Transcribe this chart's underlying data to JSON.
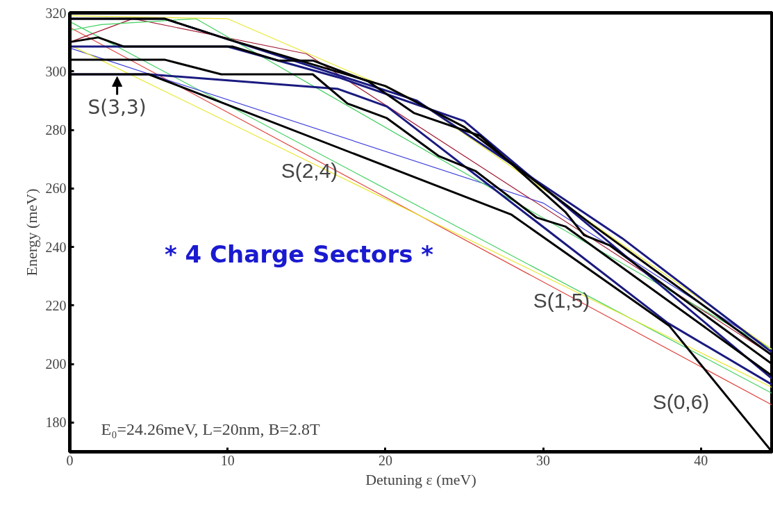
{
  "chart_data": {
    "type": "line",
    "xlabel": "Detuning ε (meV)",
    "ylabel": "Energy (meV)",
    "xlim": [
      0,
      44.5
    ],
    "ylim": [
      170,
      320
    ],
    "xticks": [
      0,
      10,
      20,
      30,
      40
    ],
    "yticks": [
      180,
      200,
      220,
      240,
      260,
      280,
      300,
      320
    ],
    "grid": false,
    "marker": "none",
    "line_style": "solid",
    "series": [
      {
        "color": "#e0403c",
        "x": [
          0,
          44.5
        ],
        "values": [
          315,
          186
        ]
      },
      {
        "color": "#40d060",
        "x": [
          0,
          44.5
        ],
        "values": [
          317,
          190
        ]
      },
      {
        "color": "#4040e0",
        "x": [
          0,
          30,
          44.5
        ],
        "values": [
          308,
          255,
          205
        ]
      },
      {
        "color": "#e8e830",
        "x": [
          0,
          44.5
        ],
        "values": [
          309,
          192
        ]
      },
      {
        "color": "#a01830",
        "x": [
          0,
          4,
          15,
          44.5
        ],
        "values": [
          310,
          318,
          306,
          203
        ]
      },
      {
        "color": "#40d060",
        "x": [
          0,
          2,
          8,
          44.5
        ],
        "values": [
          314,
          316,
          318,
          205
        ]
      },
      {
        "color": "#e8e830",
        "x": [
          0,
          10,
          22,
          44.5
        ],
        "values": [
          319,
          318,
          290,
          205
        ]
      },
      {
        "color": "#1a1a80",
        "x": [
          0,
          5,
          17,
          20.1,
          37.9,
          44.5
        ],
        "values": [
          299,
          299,
          294,
          288,
          214,
          193
        ]
      },
      {
        "color": "#1a1a80",
        "x": [
          0,
          10,
          17,
          25,
          44.5
        ],
        "values": [
          308.5,
          308.5,
          298,
          283,
          195
        ]
      },
      {
        "color": "#1a1a80",
        "x": [
          0,
          6,
          22,
          35,
          44.5
        ],
        "values": [
          318,
          318,
          290,
          243,
          204
        ]
      },
      {
        "color": "#000000",
        "x": [
          0,
          5,
          28,
          38,
          44.5
        ],
        "values": [
          299,
          299,
          251,
          213,
          170
        ]
      },
      {
        "color": "#000000",
        "x": [
          0,
          6,
          9.6,
          15.4,
          17.6,
          20.1,
          23.4,
          25.7,
          29.6,
          31.4,
          44.5
        ],
        "values": [
          304,
          304,
          299,
          299,
          289,
          284,
          271,
          266,
          250,
          247,
          196
        ]
      },
      {
        "color": "#000000",
        "x": [
          0,
          1.8,
          3.4,
          10.3,
          13.2,
          15.4,
          18.9,
          21.8,
          26,
          31.4,
          32.6,
          34.2,
          44.5
        ],
        "values": [
          310,
          311.6,
          308.5,
          308.5,
          303.7,
          303.7,
          296.6,
          285.8,
          278,
          252,
          244,
          240.6,
          200
        ]
      },
      {
        "color": "#000000",
        "x": [
          0,
          6,
          10,
          20,
          25,
          33,
          44.5
        ],
        "values": [
          318,
          318,
          311,
          295,
          281,
          248,
          203
        ]
      }
    ],
    "annotations": [
      {
        "text": "S(3,3)",
        "x": 3,
        "y": 299
      },
      "S(2,4)",
      "S(1,5)",
      "S(0,6)",
      "* 4 Charge Sectors *",
      "E₀=24.26meV, L=20nm, B=2.8T"
    ]
  }
}
